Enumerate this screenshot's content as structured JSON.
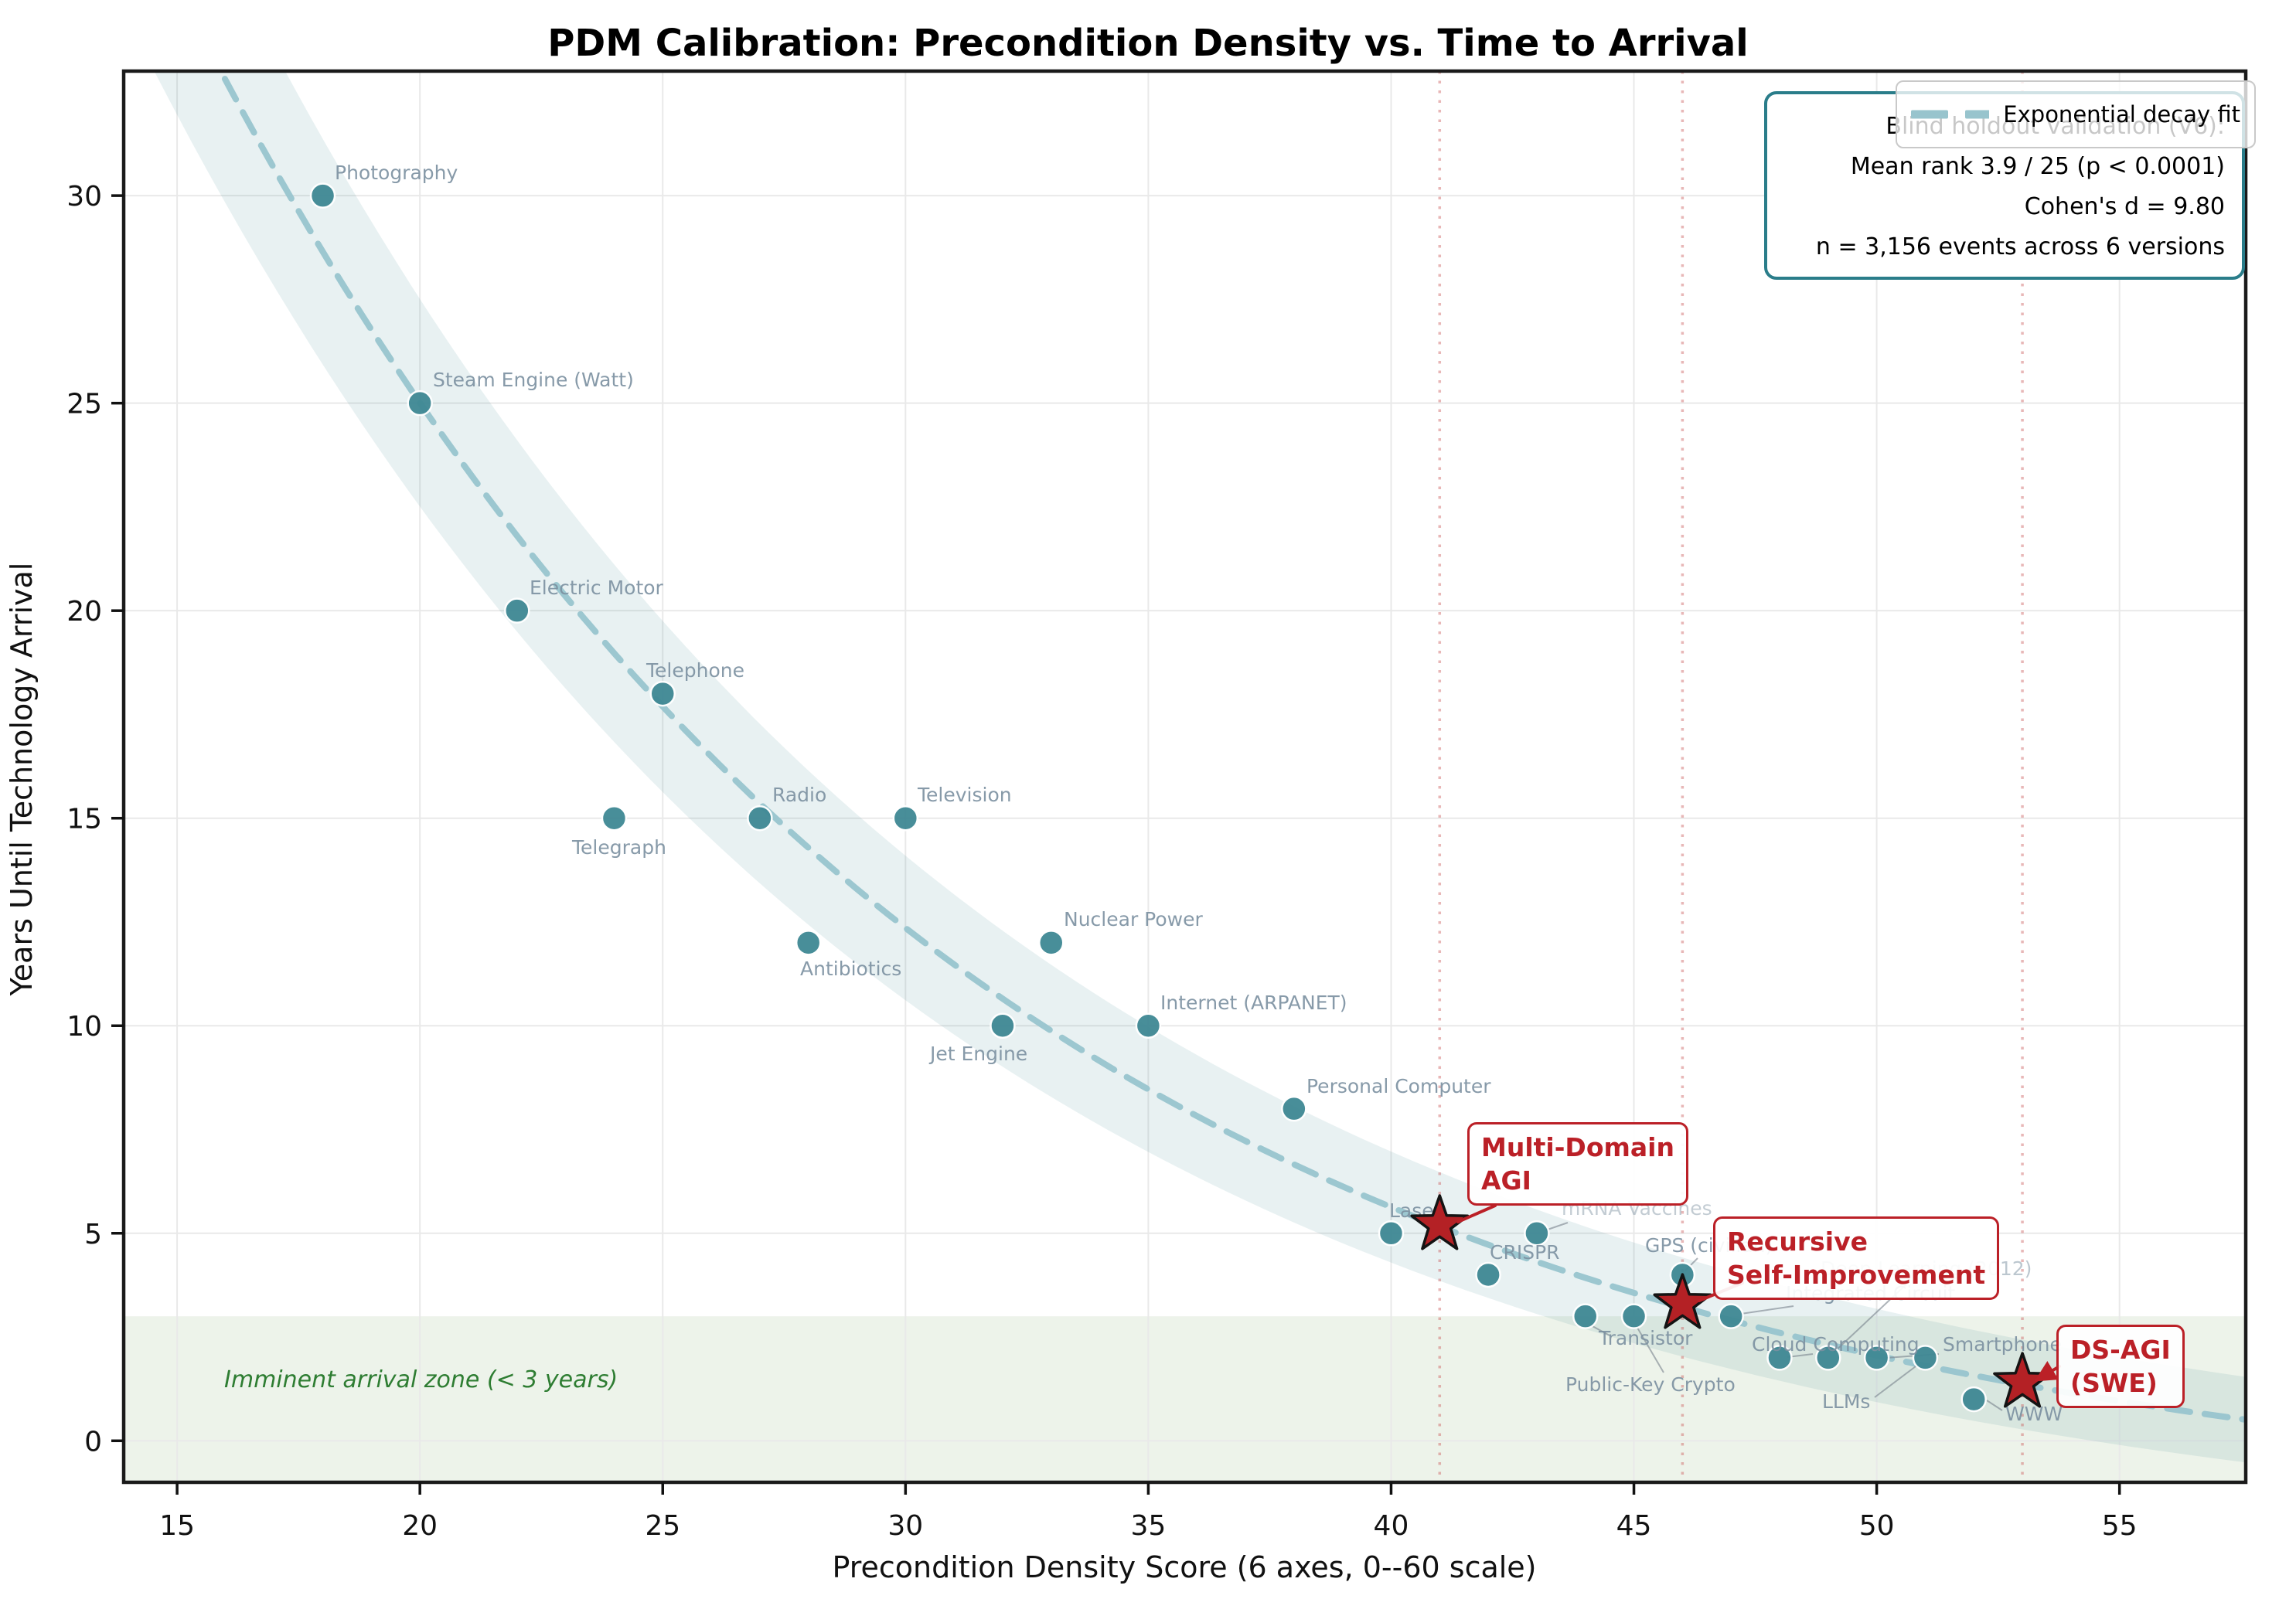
{
  "title": "PDM Calibration: Precondition Density vs. Time to Arrival",
  "chart_data": {
    "type": "scatter",
    "title": "PDM Calibration: Precondition Density vs. Time to Arrival",
    "xlabel": "Precondition Density Score (6 axes, 0--60 scale)",
    "ylabel": "Years Until Technology Arrival",
    "xlim": [
      13.9,
      57.6
    ],
    "ylim": [
      -1,
      33
    ],
    "x_ticks": [
      15,
      20,
      25,
      30,
      35,
      40,
      45,
      50,
      55
    ],
    "y_ticks": [
      0,
      5,
      10,
      15,
      20,
      25,
      30
    ],
    "grid": true,
    "points": [
      {
        "label": "Photography",
        "x": 18,
        "y": 30
      },
      {
        "label": "Steam Engine (Watt)",
        "x": 20,
        "y": 25
      },
      {
        "label": "Electric Motor",
        "x": 22,
        "y": 20
      },
      {
        "label": "Telegraph",
        "x": 24,
        "y": 15
      },
      {
        "label": "Telephone",
        "x": 25,
        "y": 18
      },
      {
        "label": "Radio",
        "x": 27,
        "y": 15
      },
      {
        "label": "Television",
        "x": 30,
        "y": 15
      },
      {
        "label": "Antibiotics",
        "x": 28,
        "y": 12
      },
      {
        "label": "Nuclear Power",
        "x": 33,
        "y": 12
      },
      {
        "label": "Jet Engine",
        "x": 32,
        "y": 10
      },
      {
        "label": "Internet (ARPANET)",
        "x": 35,
        "y": 10
      },
      {
        "label": "Personal Computer",
        "x": 38,
        "y": 8
      },
      {
        "label": "Laser",
        "x": 40,
        "y": 5
      },
      {
        "label": "mRNA Vaccines",
        "x": 43,
        "y": 5
      },
      {
        "label": "CRISPR",
        "x": 42,
        "y": 4
      },
      {
        "label": "GPS (civilian)",
        "x": 46,
        "y": 4
      },
      {
        "label": "Transistor",
        "x": 44,
        "y": 3
      },
      {
        "label": "Public-Key Crypto",
        "x": 45,
        "y": 3
      },
      {
        "label": "Integrated Circuit",
        "x": 47,
        "y": 3
      },
      {
        "label": "Cloud Computing",
        "x": 48,
        "y": 2
      },
      {
        "label": "Deep Learning (2012)",
        "x": 49,
        "y": 2
      },
      {
        "label": "Smartphone",
        "x": 50,
        "y": 2
      },
      {
        "label": "LLMs",
        "x": 51,
        "y": 2
      },
      {
        "label": "WWW",
        "x": 52,
        "y": 1
      }
    ],
    "predictions": [
      {
        "label": "Multi-Domain AGI",
        "x": 41,
        "y": 5.2
      },
      {
        "label": "Recursive Self-Improvement",
        "x": 46,
        "y": 3.3
      },
      {
        "label": "DS-AGI (SWE)",
        "x": 53,
        "y": 1.4
      }
    ],
    "fit_curve": {
      "type": "exponential",
      "legend_label": "Exponential decay fit",
      "a": 95.6,
      "b": 0.0632,
      "c": -2
    },
    "imminent_zone": {
      "label": "Imminent arrival zone (< 3 years)",
      "y_max": 3
    },
    "stats_box": {
      "line1": "Blind holdout validation (V6):",
      "line2": "Mean rank 3.9 / 25 (p < 0.0001)",
      "line3": "Cohen's d = 9.80",
      "line4": "n = 3,156 events across 6 versions"
    }
  },
  "annotations": [
    {
      "line1": "Multi-Domain",
      "line2": "AGI"
    },
    {
      "line1": "Recursive",
      "line2": "Self-Improvement"
    },
    {
      "line1": "DS-AGI",
      "line2": "(SWE)"
    }
  ],
  "colors": {
    "dot": "#3f8894",
    "dot_edge": "#ffffff",
    "fit_line": "#98c4cd",
    "band": "rgba(63,136,148,0.12)",
    "star": "#b42125",
    "star_edge": "#141414",
    "annotation_red": "#bb2027",
    "vline": "rgba(205,95,95,0.45)",
    "zone_fill": "rgba(141,180,124,0.16)",
    "zone_text": "#2e7d32",
    "point_label": "#7b90a0",
    "grid": "#e9e9e9",
    "spine": "#1a1a1a",
    "stats_border": "#2a7d8a"
  }
}
